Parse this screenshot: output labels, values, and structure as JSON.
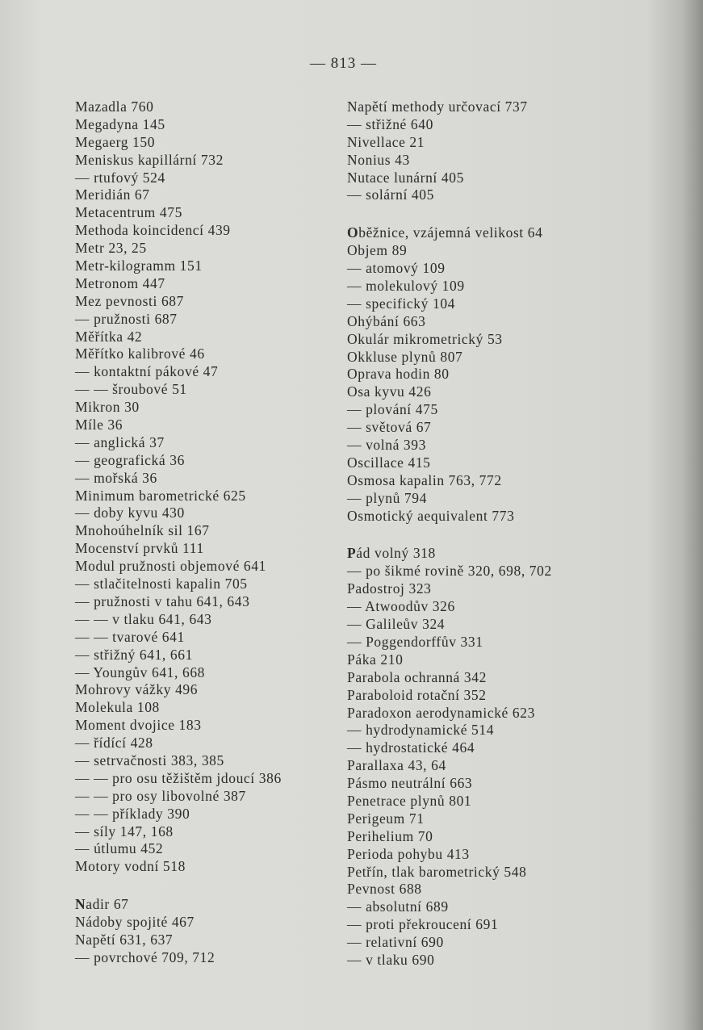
{
  "page_number": "— 813 —",
  "left_column": [
    [
      "Mazadla 760",
      "Megadyna 145",
      "Megaerg 150",
      "Meniskus kapillární 732",
      "— rtufový 524",
      "Meridián 67",
      "Metacentrum 475",
      "Methoda koincidencí 439",
      "Metr 23, 25",
      "Metr-kilogramm 151",
      "Metronom 447",
      "Mez pevnosti 687",
      "— pružnosti 687",
      "Měřítka 42",
      "Měřítko kalibrové 46",
      "— kontaktní pákové 47",
      "— — šroubové 51",
      "Mikron 30",
      "Míle 36",
      "— anglická 37",
      "— geografická 36",
      "— mořská 36",
      "Minimum barometrické 625",
      "— doby kyvu 430",
      "Mnohoúhelník sil 167",
      "Mocenství prvků 111",
      "Modul pružnosti objemové 641",
      "— stlačitelnosti kapalin 705",
      "— pružnosti v tahu 641, 643",
      "— — v tlaku 641, 643",
      "— — tvarové 641",
      "— střižný 641, 661",
      "— Youngův 641, 668",
      "Mohrovy vážky 496",
      "Molekula 108",
      "Moment dvojice 183",
      "— řídící 428",
      "— setrvačnosti 383, 385",
      "— — pro osu těžištěm jdoucí 386",
      "— — pro osy libovolné 387",
      "— — příklady 390",
      "— síly 147, 168",
      "— útlumu 452",
      "Motory vodní 518"
    ],
    [
      "Nadir 67",
      "Nádoby spojité 467",
      "Napětí 631, 637",
      "— povrchové 709, 712"
    ]
  ],
  "right_column": [
    [
      "Napětí methody určovací 737",
      "— střižné 640",
      "Nivellace 21",
      "Nonius 43",
      "Nutace lunární 405",
      "— solární 405"
    ],
    [
      "Oběžnice, vzájemná velikost 64",
      "Objem 89",
      "— atomový 109",
      "— molekulový 109",
      "— specifický 104",
      "Ohýbání 663",
      "Okulár mikrometrický 53",
      "Okkluse plynů 807",
      "Oprava hodin 80",
      "Osa kyvu 426",
      "— plování 475",
      "— světová 67",
      "— volná 393",
      "Oscillace 415",
      "Osmosa kapalin 763, 772",
      "— plynů 794",
      "Osmotický aequivalent 773"
    ],
    [
      "Pád volný 318",
      "— po šikmé rovině 320, 698, 702",
      "Padostroj 323",
      "— Atwoodův 326",
      "— Galileův 324",
      "— Poggendorffův 331",
      "Páka 210",
      "Parabola ochranná 342",
      "Paraboloid rotační 352",
      "Paradoxon aerodynamické 623",
      "— hydrodynamické 514",
      "— hydrostatické 464",
      "Parallaxa 43, 64",
      "Pásmo neutrální 663",
      "Penetrace plynů 801",
      "Perigeum 71",
      "Perihelium 70",
      "Perioda pohybu 413",
      "Petřín, tlak barometrický 548",
      "Pevnost 688",
      "— absolutní 689",
      "— proti překroucení 691",
      "— relativní 690",
      "— v tlaku 690"
    ]
  ]
}
